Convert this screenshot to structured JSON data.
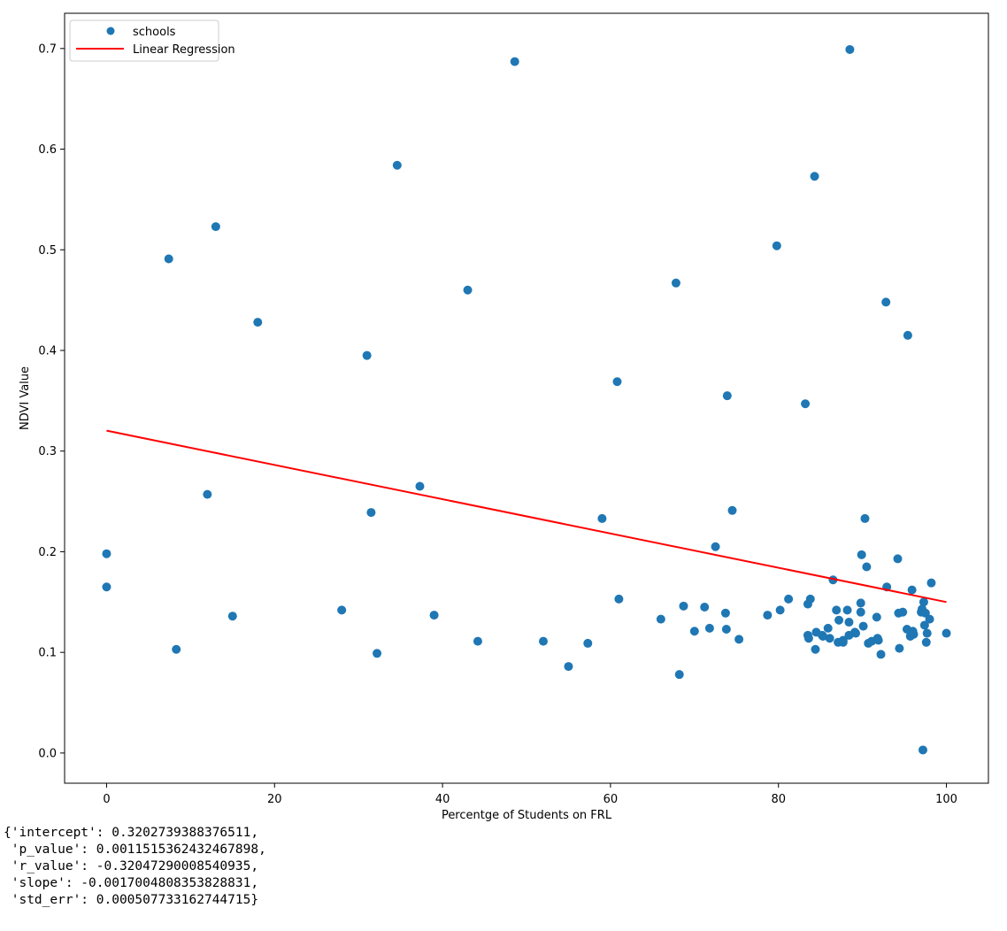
{
  "chart_data": {
    "type": "scatter",
    "title": "",
    "xlabel": "Percentge of Students on FRL",
    "ylabel": "NDVI Value",
    "xlim": [
      -5,
      105
    ],
    "ylim": [
      -0.03,
      0.735
    ],
    "xticks": [
      0,
      20,
      40,
      60,
      80,
      100
    ],
    "yticks": [
      0.0,
      0.1,
      0.2,
      0.3,
      0.4,
      0.5,
      0.6,
      0.7
    ],
    "xtick_labels": [
      "0",
      "20",
      "40",
      "60",
      "80",
      "100"
    ],
    "ytick_labels": [
      "0.0",
      "0.1",
      "0.2",
      "0.3",
      "0.4",
      "0.5",
      "0.6",
      "0.7"
    ],
    "grid": false,
    "legend_position": "top-left",
    "series": [
      {
        "name": "schools",
        "kind": "scatter",
        "color": "#1f77b4",
        "points": [
          [
            0,
            0.198
          ],
          [
            0,
            0.165
          ],
          [
            7.4,
            0.491
          ],
          [
            8.3,
            0.103
          ],
          [
            12,
            0.257
          ],
          [
            13,
            0.523
          ],
          [
            15,
            0.136
          ],
          [
            18,
            0.428
          ],
          [
            28,
            0.142
          ],
          [
            31,
            0.395
          ],
          [
            31.5,
            0.239
          ],
          [
            32.2,
            0.099
          ],
          [
            34.6,
            0.584
          ],
          [
            37.3,
            0.265
          ],
          [
            39,
            0.137
          ],
          [
            43,
            0.46
          ],
          [
            44.2,
            0.111
          ],
          [
            48.6,
            0.687
          ],
          [
            52,
            0.111
          ],
          [
            55,
            0.086
          ],
          [
            57.3,
            0.109
          ],
          [
            59,
            0.233
          ],
          [
            60.8,
            0.369
          ],
          [
            61,
            0.153
          ],
          [
            66,
            0.133
          ],
          [
            67.8,
            0.467
          ],
          [
            68.2,
            0.078
          ],
          [
            68.7,
            0.146
          ],
          [
            70,
            0.121
          ],
          [
            71.2,
            0.145
          ],
          [
            71.8,
            0.124
          ],
          [
            72.5,
            0.205
          ],
          [
            73.7,
            0.139
          ],
          [
            73.8,
            0.123
          ],
          [
            73.9,
            0.355
          ],
          [
            74.5,
            0.241
          ],
          [
            75.3,
            0.113
          ],
          [
            78.7,
            0.137
          ],
          [
            79.8,
            0.504
          ],
          [
            80.2,
            0.142
          ],
          [
            81.2,
            0.153
          ],
          [
            83.2,
            0.347
          ],
          [
            83.5,
            0.148
          ],
          [
            83.8,
            0.153
          ],
          [
            83.5,
            0.117
          ],
          [
            83.6,
            0.114
          ],
          [
            84.3,
            0.573
          ],
          [
            84.4,
            0.103
          ],
          [
            84.5,
            0.12
          ],
          [
            85.2,
            0.117
          ],
          [
            85.3,
            0.116
          ],
          [
            86.5,
            0.172
          ],
          [
            85.9,
            0.124
          ],
          [
            86.1,
            0.114
          ],
          [
            86.9,
            0.142
          ],
          [
            87.1,
            0.11
          ],
          [
            87.2,
            0.132
          ],
          [
            87.7,
            0.11
          ],
          [
            87.7,
            0.112
          ],
          [
            88.2,
            0.142
          ],
          [
            88.4,
            0.13
          ],
          [
            88.4,
            0.117
          ],
          [
            88.5,
            0.699
          ],
          [
            89.1,
            0.12
          ],
          [
            89.2,
            0.119
          ],
          [
            89.9,
            0.197
          ],
          [
            89.8,
            0.149
          ],
          [
            89.8,
            0.14
          ],
          [
            90.1,
            0.126
          ],
          [
            90.3,
            0.233
          ],
          [
            90.5,
            0.185
          ],
          [
            90.7,
            0.109
          ],
          [
            91.1,
            0.111
          ],
          [
            91.7,
            0.135
          ],
          [
            91.8,
            0.114
          ],
          [
            91.9,
            0.112
          ],
          [
            92.2,
            0.098
          ],
          [
            92.8,
            0.448
          ],
          [
            92.9,
            0.165
          ],
          [
            94.2,
            0.193
          ],
          [
            94.3,
            0.139
          ],
          [
            94.4,
            0.104
          ],
          [
            94.8,
            0.14
          ],
          [
            95.3,
            0.123
          ],
          [
            95.4,
            0.415
          ],
          [
            95.7,
            0.116
          ],
          [
            95.9,
            0.162
          ],
          [
            96,
            0.121
          ],
          [
            96.1,
            0.118
          ],
          [
            97,
            0.14
          ],
          [
            97.1,
            0.143
          ],
          [
            97.2,
            0.003
          ],
          [
            97.3,
            0.15
          ],
          [
            97.4,
            0.127
          ],
          [
            97.5,
            0.139
          ],
          [
            97.6,
            0.11
          ],
          [
            97.7,
            0.119
          ],
          [
            98,
            0.133
          ],
          [
            98.2,
            0.169
          ],
          [
            100,
            0.119
          ]
        ]
      },
      {
        "name": "Linear Regression",
        "kind": "line",
        "color": "#ff0000",
        "x": [
          0,
          100
        ],
        "y": [
          0.3203,
          0.15
        ]
      }
    ]
  },
  "output_text": "{'intercept': 0.3202739388376511,\n 'p_value': 0.0011515362432467898,\n 'r_value': -0.32047290008540935,\n 'slope': -0.0017004808353828831,\n 'std_err': 0.000507733162744715}"
}
